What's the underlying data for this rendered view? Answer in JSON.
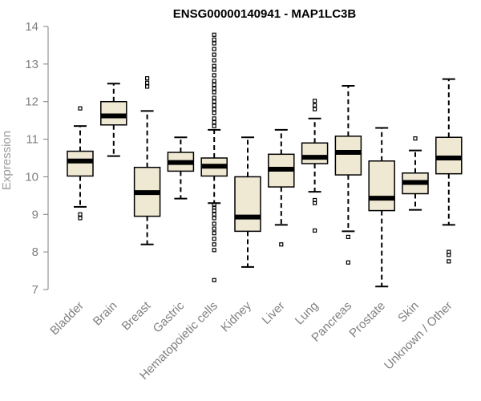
{
  "chart_data": {
    "type": "boxplot",
    "title": "ENSG00000140941 - MAP1LC3B",
    "ylabel": "Expression",
    "xlabel": "",
    "ylim": [
      7,
      14
    ],
    "yticks": [
      7,
      8,
      9,
      10,
      11,
      12,
      13,
      14
    ],
    "categories": [
      "Bladder",
      "Brain",
      "Breast",
      "Gastric",
      "Hematopoietic cells",
      "Kidney",
      "Liver",
      "Lung",
      "Pancreas",
      "Prostate",
      "Skin",
      "Unknown / Other"
    ],
    "boxes": [
      {
        "category": "Bladder",
        "whisker_low": 9.2,
        "q1": 10.02,
        "median": 10.42,
        "q3": 10.68,
        "whisker_high": 11.35,
        "outliers": [
          8.9,
          9.0,
          11.82
        ]
      },
      {
        "category": "Brain",
        "whisker_low": 10.55,
        "q1": 11.38,
        "median": 11.62,
        "q3": 12.0,
        "whisker_high": 12.48,
        "outliers": []
      },
      {
        "category": "Breast",
        "whisker_low": 8.2,
        "q1": 8.95,
        "median": 9.58,
        "q3": 10.25,
        "whisker_high": 11.75,
        "outliers": [
          12.4,
          12.5,
          12.62
        ]
      },
      {
        "category": "Gastric",
        "whisker_low": 9.42,
        "q1": 10.15,
        "median": 10.38,
        "q3": 10.65,
        "whisker_high": 11.05,
        "outliers": []
      },
      {
        "category": "Hematopoietic cells",
        "whisker_low": 9.3,
        "q1": 10.02,
        "median": 10.28,
        "q3": 10.5,
        "whisker_high": 11.25,
        "outliers": [
          7.25,
          8.05,
          8.2,
          8.35,
          8.5,
          8.62,
          8.75,
          8.9,
          9.0,
          9.1,
          9.18,
          9.25,
          11.35,
          11.45,
          11.55,
          11.7,
          11.8,
          11.9,
          12.0,
          12.1,
          12.25,
          12.35,
          12.45,
          12.55,
          12.7,
          12.85,
          12.95,
          13.1,
          13.25,
          13.4,
          13.55,
          13.65,
          13.78
        ]
      },
      {
        "category": "Kidney",
        "whisker_low": 7.6,
        "q1": 8.55,
        "median": 8.93,
        "q3": 10.0,
        "whisker_high": 11.05,
        "outliers": []
      },
      {
        "category": "Liver",
        "whisker_low": 8.72,
        "q1": 9.73,
        "median": 10.2,
        "q3": 10.6,
        "whisker_high": 11.25,
        "outliers": [
          8.2
        ]
      },
      {
        "category": "Lung",
        "whisker_low": 9.6,
        "q1": 10.35,
        "median": 10.52,
        "q3": 10.9,
        "whisker_high": 11.55,
        "outliers": [
          8.57,
          9.3,
          9.38,
          11.8,
          11.9,
          12.02
        ]
      },
      {
        "category": "Pancreas",
        "whisker_low": 8.55,
        "q1": 10.05,
        "median": 10.65,
        "q3": 11.08,
        "whisker_high": 12.42,
        "outliers": [
          7.72,
          8.4
        ]
      },
      {
        "category": "Prostate",
        "whisker_low": 7.08,
        "q1": 9.1,
        "median": 9.43,
        "q3": 10.42,
        "whisker_high": 11.3,
        "outliers": []
      },
      {
        "category": "Skin",
        "whisker_low": 9.12,
        "q1": 9.55,
        "median": 9.85,
        "q3": 10.1,
        "whisker_high": 10.7,
        "outliers": [
          11.02
        ]
      },
      {
        "category": "Unknown / Other",
        "whisker_low": 8.72,
        "q1": 10.08,
        "median": 10.5,
        "q3": 11.05,
        "whisker_high": 12.6,
        "outliers": [
          7.75,
          7.92,
          8.0
        ]
      }
    ],
    "colors": {
      "box_fill": "#efe8d2",
      "stroke": "#000000",
      "axis": "#808080"
    },
    "grid": false,
    "legend": "none"
  }
}
